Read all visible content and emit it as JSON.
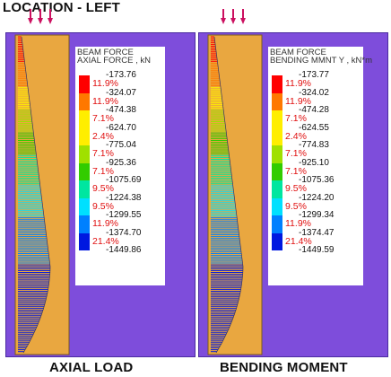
{
  "title": "LOCATION - LEFT",
  "captions": {
    "left": "AXIAL LOAD",
    "right": "BENDING MOMENT"
  },
  "colors": {
    "background": "#7e4ddb",
    "beam_fill": "#e9a740",
    "pct_text": "#e01010"
  },
  "panels": [
    {
      "id": "axial",
      "legend": {
        "title1": "BEAM FORCE",
        "title2": "AXIAL FORCE , kN",
        "values": [
          "-173.76",
          "-324.07",
          "-474.38",
          "-624.70",
          "-775.04",
          "-925.36",
          "-1075.69",
          "-1224.38",
          "-1299.55",
          "-1374.70",
          "-1449.86"
        ],
        "percentages": [
          "11.9%",
          "11.9%",
          "7.1%",
          "2.4%",
          "7.1%",
          "7.1%",
          "9.5%",
          "9.5%",
          "11.9%",
          "21.4%"
        ]
      }
    },
    {
      "id": "bending",
      "legend": {
        "title1": "BEAM FORCE",
        "title2": "BENDING MMNT Y , kN*m",
        "values": [
          "-173.77",
          "-324.02",
          "-474.28",
          "-624.55",
          "-774.83",
          "-925.10",
          "-1075.36",
          "-1224.20",
          "-1299.34",
          "-1374.47",
          "-1449.59"
        ],
        "percentages": [
          "11.9%",
          "11.9%",
          "7.1%",
          "2.4%",
          "7.1%",
          "7.1%",
          "9.5%",
          "9.5%",
          "11.9%",
          "21.4%"
        ]
      }
    }
  ],
  "band_colors": [
    "#ff0000",
    "#ff7800",
    "#ffee00",
    "#ffee00",
    "#a0e000",
    "#32cc00",
    "#00e6a0",
    "#00e0ff",
    "#0080ff",
    "#0018e0"
  ]
}
